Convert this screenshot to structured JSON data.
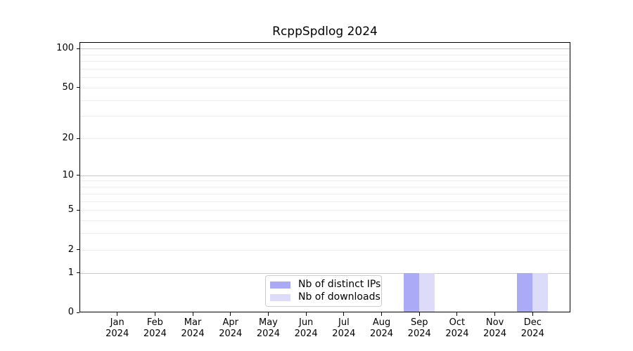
{
  "chart_data": {
    "type": "bar",
    "title": "RcppSpdlog 2024",
    "xlabel": "",
    "ylabel": "",
    "categories": [
      "Jan 2024",
      "Feb 2024",
      "Mar 2024",
      "Apr 2024",
      "May 2024",
      "Jun 2024",
      "Jul 2024",
      "Aug 2024",
      "Sep 2024",
      "Oct 2024",
      "Nov 2024",
      "Dec 2024"
    ],
    "series": [
      {
        "name": "Nb of distinct IPs",
        "color": "#abaaf7",
        "values": [
          0,
          0,
          0,
          0,
          0,
          0,
          0,
          0,
          1,
          0,
          0,
          1
        ]
      },
      {
        "name": "Nb of downloads",
        "color": "#dcdcfa",
        "values": [
          0,
          0,
          0,
          0,
          0,
          0,
          0,
          0,
          1,
          0,
          0,
          1
        ]
      }
    ],
    "yscale": "log1p",
    "ylim": [
      0,
      112
    ],
    "yticks": [
      0,
      1,
      2,
      5,
      10,
      20,
      50,
      100
    ],
    "grid": "on",
    "grid_major": [
      1,
      10,
      100
    ],
    "grid_minor": [
      2,
      3,
      4,
      5,
      6,
      7,
      8,
      9,
      20,
      30,
      40,
      50,
      60,
      70,
      80,
      90
    ],
    "legend_position": "bottom-center"
  },
  "style": {
    "grid_major_color": "#c8c8c8",
    "grid_minor_color": "#ececec",
    "axis_color": "#000000",
    "tick_label_color": "#000000",
    "legend_border_color": "#cccccc",
    "background": "#ffffff"
  }
}
